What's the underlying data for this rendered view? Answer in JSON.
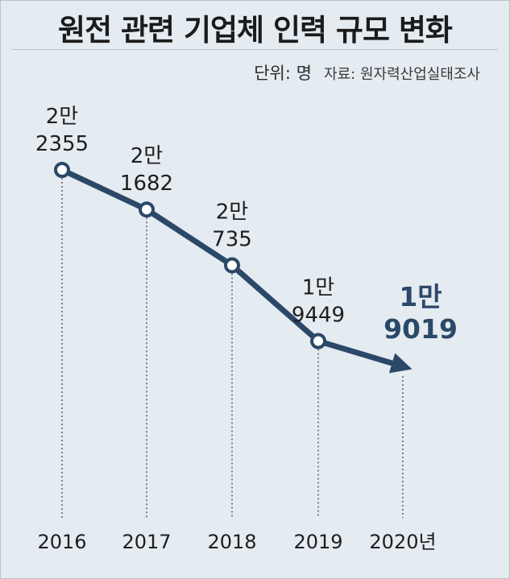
{
  "chart_data": {
    "type": "line",
    "title": "원전 관련 기업체 인력 규모 변화",
    "unit_label": "단위: 명",
    "source_label": "자료: 원자력산업실태조사",
    "categories": [
      "2016",
      "2017",
      "2018",
      "2019",
      "2020년"
    ],
    "values": [
      22355,
      21682,
      20735,
      19449,
      19019
    ],
    "data_labels": [
      {
        "line1": "2만",
        "line2": "2355"
      },
      {
        "line1": "2만",
        "line2": "1682"
      },
      {
        "line1": "2만",
        "line2": "735"
      },
      {
        "line1": "1만",
        "line2": "9449"
      },
      {
        "line1": "1만",
        "line2": "9019"
      }
    ],
    "highlight_last": true,
    "colors": {
      "line": "#2b4868",
      "highlight_label": "#2b4868",
      "background": "#e4ebf1",
      "marker_fill": "#ffffff"
    }
  }
}
